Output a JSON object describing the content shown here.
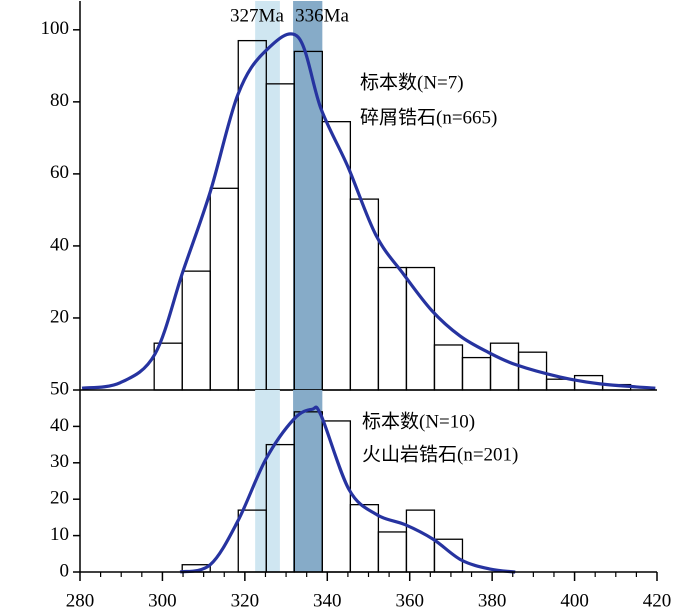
{
  "chart_data": [
    {
      "type": "histogram",
      "bins": [
        298,
        304.8,
        311.6,
        318.4,
        325.2,
        332,
        338.8,
        345.6,
        352.4,
        359.2,
        366,
        372.8,
        379.6,
        386.4,
        393.2,
        400,
        406.8,
        413.6
      ],
      "counts": [
        13,
        33,
        56,
        97,
        85,
        94,
        74.5,
        53,
        34,
        34,
        12.5,
        9,
        13,
        10.5,
        3,
        4,
        1.5
      ],
      "curve": {
        "color": "#2633a0",
        "x": [
          280.5,
          289.7,
          298.2,
          305,
          311.6,
          318.3,
          324.9,
          332.9,
          338.5,
          345,
          351.8,
          358.6,
          365.4,
          372.2,
          379,
          385.8,
          396.5,
          406.2,
          419.6
        ],
        "y": [
          0.5,
          2,
          10,
          33,
          55,
          82,
          94,
          98,
          78,
          62,
          43,
          32,
          22,
          15,
          10.5,
          7,
          3.6,
          1.7,
          0.5
        ]
      },
      "bands": [
        {
          "label": "327Ma",
          "range": [
            322.5,
            328.5
          ],
          "color": "#cfe6f1"
        },
        {
          "label": "336Ma",
          "range": [
            331.7,
            338.8
          ],
          "color": "#86abc8"
        }
      ],
      "annotations": [
        "标本数(N=7)",
        "碎屑锆石(n=665)"
      ],
      "xlim": [
        280,
        420
      ],
      "ylim": [
        0,
        108
      ],
      "yticks": [
        20,
        40,
        60,
        80,
        100
      ]
    },
    {
      "type": "histogram",
      "bins": [
        304.8,
        311.6,
        318.4,
        325.2,
        332,
        338.8,
        345.6,
        352.4,
        359.2,
        366,
        372.8
      ],
      "counts": [
        2,
        0,
        17,
        35,
        44,
        41.5,
        18.5,
        11,
        17,
        9
      ],
      "curve": {
        "color": "#2633a0",
        "x": [
          304.3,
          311.6,
          318.3,
          325.1,
          331.9,
          336.3,
          338.5,
          345.3,
          352.1,
          358.9,
          365.7,
          372.5,
          379.5,
          385.6
        ],
        "y": [
          0,
          2,
          14,
          31,
          42,
          44.7,
          43,
          22.6,
          15.7,
          13,
          9,
          3.3,
          0.8,
          0
        ]
      },
      "bands": [
        {
          "range": [
            322.5,
            328.5
          ],
          "color": "#cfe6f1"
        },
        {
          "range": [
            331.7,
            338.8
          ],
          "color": "#86abc8"
        }
      ],
      "annotations": [
        "标本数(N=10)",
        "火山岩锆石(n=201)"
      ],
      "xlim": [
        280,
        420
      ],
      "ylim": [
        0,
        50
      ],
      "yticks": [
        0,
        10,
        20,
        30,
        40,
        50
      ],
      "xticks": [
        280,
        300,
        320,
        340,
        360,
        380,
        400,
        420
      ],
      "xticks_minor": [
        285,
        290,
        295,
        305,
        310,
        315,
        325,
        330,
        335,
        345,
        350,
        355,
        365,
        370,
        375,
        385,
        390,
        395,
        405,
        410,
        415
      ]
    }
  ]
}
